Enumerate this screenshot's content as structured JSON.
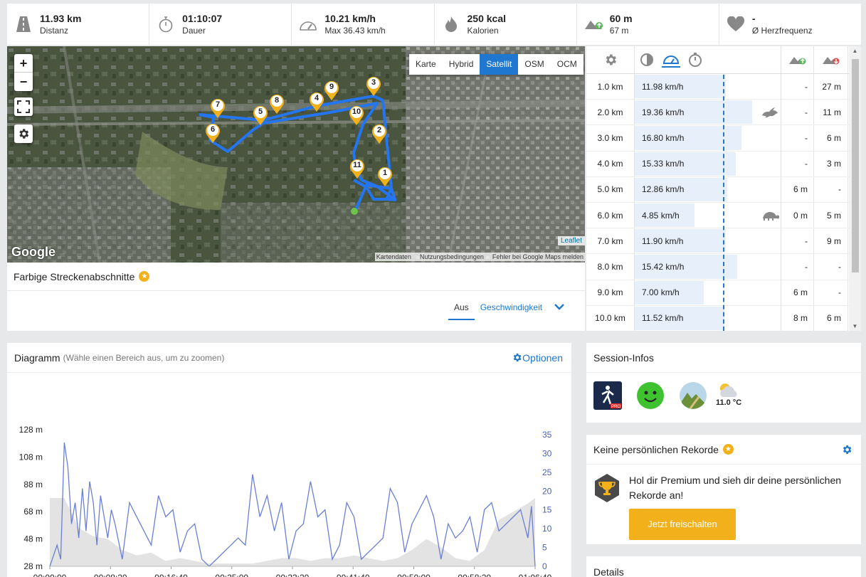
{
  "stats": [
    {
      "icon": "road-icon",
      "value": "11.93 km",
      "label": "Distanz"
    },
    {
      "icon": "stopwatch-icon",
      "value": "01:10:07",
      "label": "Dauer"
    },
    {
      "icon": "speedometer-icon",
      "value": "10.21 km/h",
      "label": "Max 36.43 km/h"
    },
    {
      "icon": "flame-icon",
      "value": "250 kcal",
      "label": "Kalorien"
    },
    {
      "icon": "elevation-up-icon",
      "value": "60 m",
      "label": "67 m"
    },
    {
      "icon": "heart-icon",
      "value": "-",
      "label": "Ø Herzfrequenz"
    }
  ],
  "map": {
    "zoom_in": "+",
    "zoom_out": "−",
    "types": [
      "Karte",
      "Hybrid",
      "Satellit",
      "OSM",
      "OCM"
    ],
    "active_type": "Satellit",
    "google_logo": "Google",
    "leaflet": "Leaflet",
    "attribution": [
      "Kartendaten",
      "Nutzungsbedingungen",
      "Fehler bei Google Maps melden"
    ],
    "markers": [
      "1",
      "2",
      "3",
      "4",
      "5",
      "6",
      "7",
      "8",
      "9",
      "10",
      "11"
    ],
    "legend_title": "Farbige Streckenabschnitte",
    "color_tabs": [
      "Aus",
      "Geschwindigkeit"
    ]
  },
  "splits": {
    "rows": [
      {
        "km": "1.0 km",
        "speed": "11.98 km/h",
        "frac": 0.62,
        "up": "-",
        "down": "27 m",
        "badge": ""
      },
      {
        "km": "2.0 km",
        "speed": "19.36 km/h",
        "frac": 0.8,
        "up": "-",
        "down": "11 m",
        "badge": "rabbit-icon"
      },
      {
        "km": "3.0 km",
        "speed": "16.80 km/h",
        "frac": 0.73,
        "up": "-",
        "down": "6 m",
        "badge": ""
      },
      {
        "km": "4.0 km",
        "speed": "15.33 km/h",
        "frac": 0.69,
        "up": "-",
        "down": "3 m",
        "badge": ""
      },
      {
        "km": "5.0 km",
        "speed": "12.86 km/h",
        "frac": 0.63,
        "up": "6 m",
        "down": "-",
        "badge": ""
      },
      {
        "km": "6.0 km",
        "speed": "4.85 km/h",
        "frac": 0.41,
        "up": "0 m",
        "down": "5 m",
        "badge": "turtle-icon"
      },
      {
        "km": "7.0 km",
        "speed": "11.90 km/h",
        "frac": 0.62,
        "up": "-",
        "down": "9 m",
        "badge": ""
      },
      {
        "km": "8.0 km",
        "speed": "15.42 km/h",
        "frac": 0.7,
        "up": "-",
        "down": "-",
        "badge": ""
      },
      {
        "km": "9.0 km",
        "speed": "7.00 km/h",
        "frac": 0.47,
        "up": "6 m",
        "down": "-",
        "badge": ""
      },
      {
        "km": "10.0 km",
        "speed": "11.52 km/h",
        "frac": 0.61,
        "up": "8 m",
        "down": "6 m",
        "badge": ""
      }
    ]
  },
  "diagram": {
    "title": "Diagramm",
    "hint": "(Wähle einen Bereich aus, um zu zoomen)",
    "options": "Optionen"
  },
  "chart_data": {
    "type": "line",
    "title": "",
    "xlabel": "",
    "ylabel": "",
    "x_ticks": [
      "00:00:00",
      "00:08:20",
      "00:16:40",
      "00:25:00",
      "00:33:20",
      "00:41:40",
      "00:50:00",
      "00:58:20",
      "01:06:40"
    ],
    "y_left_ticks": [
      "128 m",
      "108 m",
      "88 m",
      "68 m",
      "48 m",
      "28 m"
    ],
    "y_right_ticks": [
      "35",
      "30",
      "25",
      "20",
      "15",
      "10",
      "5",
      "0"
    ],
    "ylim_left": [
      28,
      128
    ],
    "ylim_right": [
      0,
      35
    ],
    "series": [
      {
        "axis": "right",
        "color": "#6a7fd6",
        "x": [
          0,
          0.5,
          1,
          1.5,
          2,
          2.5,
          3,
          3.5,
          4,
          4.5,
          5,
          5.5,
          6,
          6.5,
          7,
          7.5,
          8,
          8.5,
          9,
          10,
          11,
          12,
          13,
          14,
          15,
          16,
          17,
          18,
          19,
          20,
          21,
          22,
          23,
          24,
          25,
          26,
          27,
          28,
          29,
          30,
          31,
          32,
          33,
          34,
          35,
          36,
          37,
          38,
          39,
          40,
          41,
          42,
          43,
          44,
          45,
          46,
          47,
          48,
          49,
          50,
          51,
          52,
          53,
          54,
          55,
          56,
          57,
          58,
          59,
          60,
          61,
          62,
          63,
          64,
          65,
          66,
          66.5,
          67
        ],
        "y": [
          0,
          3,
          6,
          2,
          35,
          28,
          12,
          18,
          8,
          22,
          10,
          24,
          18,
          6,
          20,
          14,
          8,
          16,
          12,
          2,
          18,
          14,
          10,
          6,
          20,
          14,
          16,
          4,
          10,
          12,
          2,
          0,
          2,
          4,
          6,
          8,
          6,
          26,
          14,
          20,
          10,
          18,
          2,
          10,
          12,
          24,
          14,
          16,
          2,
          6,
          18,
          14,
          2,
          4,
          6,
          8,
          22,
          18,
          4,
          12,
          16,
          20,
          14,
          2,
          12,
          8,
          10,
          14,
          4,
          16,
          18,
          10,
          12,
          14,
          16,
          8,
          17,
          0
        ]
      },
      {
        "axis": "left",
        "color": "#e3e3e3",
        "x": [
          0,
          2,
          4,
          6,
          8,
          10,
          12,
          14,
          16,
          18,
          20,
          22,
          24,
          26,
          28,
          30,
          32,
          34,
          36,
          38,
          40,
          42,
          44,
          46,
          48,
          50,
          52,
          54,
          56,
          58,
          60,
          62,
          64,
          66,
          67
        ],
        "y": [
          78,
          78,
          56,
          50,
          48,
          40,
          36,
          38,
          32,
          34,
          32,
          30,
          30,
          30,
          30,
          32,
          34,
          34,
          32,
          34,
          34,
          36,
          34,
          32,
          34,
          40,
          48,
          42,
          34,
          32,
          40,
          62,
          68,
          74,
          78
        ]
      }
    ]
  },
  "session": {
    "title": "Session-Infos",
    "icons": [
      "runtastic-pro-app-icon",
      "happy-face-icon",
      "terrain-trail-icon",
      "cloud-sun-icon"
    ],
    "temp": "11.0 °C"
  },
  "records": {
    "title": "Keine persönlichen Rekorde",
    "text": "Hol dir Premium und sieh dir deine persönlichen Rekorde an!",
    "cta": "Jetzt freischalten"
  },
  "details": {
    "title": "Details"
  }
}
